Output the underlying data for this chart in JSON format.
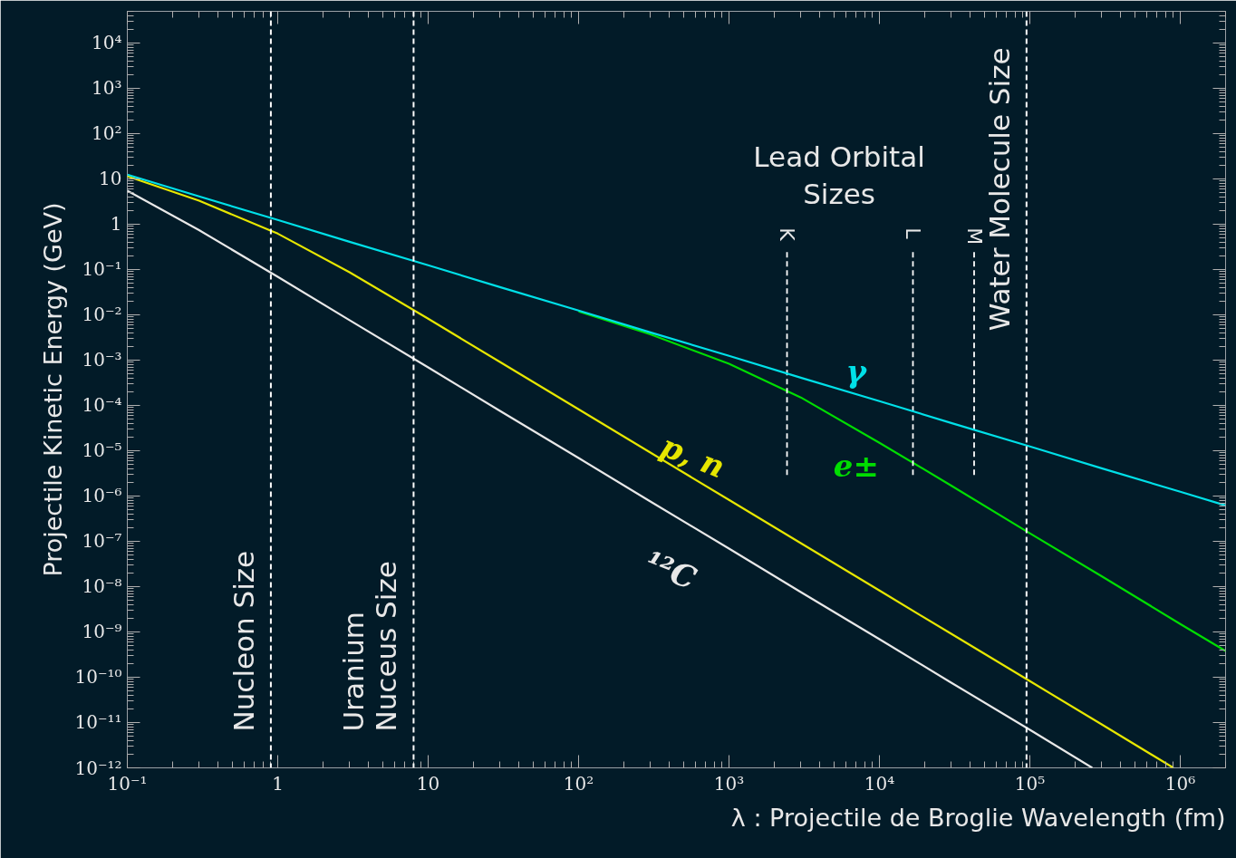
{
  "chart_data": {
    "type": "line",
    "xlabel": "λ : Projectile de Broglie Wavelength (fm)",
    "ylabel": "Projectile Kinetic Energy (GeV)",
    "log": "xy",
    "grid": false,
    "marker": "none",
    "line_style": "solid",
    "xlim": [
      0.1,
      2000000
    ],
    "ylim": [
      1e-12,
      50000
    ],
    "xticks": [
      {
        "value": 0.1,
        "label": "10⁻¹"
      },
      1,
      10,
      {
        "value": 100,
        "label": "10²"
      },
      {
        "value": 1000,
        "label": "10³"
      },
      {
        "value": 10000,
        "label": "10⁴"
      },
      {
        "value": 100000,
        "label": "10⁵"
      },
      {
        "value": 1000000,
        "label": "10⁶"
      }
    ],
    "yticks": [
      {
        "value": 1e-12,
        "label": "10⁻¹²"
      },
      {
        "value": 1e-11,
        "label": "10⁻¹¹"
      },
      {
        "value": 1e-10,
        "label": "10⁻¹⁰"
      },
      {
        "value": 1e-09,
        "label": "10⁻⁹"
      },
      {
        "value": 1e-08,
        "label": "10⁻⁸"
      },
      {
        "value": 1e-07,
        "label": "10⁻⁷"
      },
      {
        "value": 1e-06,
        "label": "10⁻⁶"
      },
      {
        "value": 1e-05,
        "label": "10⁻⁵"
      },
      {
        "value": 0.0001,
        "label": "10⁻⁴"
      },
      {
        "value": 0.001,
        "label": "10⁻³"
      },
      {
        "value": 0.01,
        "label": "10⁻²"
      },
      {
        "value": 0.1,
        "label": "10⁻¹"
      },
      1,
      10,
      {
        "value": 100,
        "label": "10²"
      },
      {
        "value": 1000,
        "label": "10³"
      },
      {
        "value": 10000,
        "label": "10⁴"
      }
    ],
    "x": [
      0.1,
      0.3,
      1,
      3,
      10,
      30,
      100,
      300,
      1000,
      3000,
      10000,
      30000,
      100000,
      300000,
      1000000,
      2000000
    ],
    "series": [
      {
        "name": "γ",
        "color": "#00e0e8",
        "values": [
          12.4,
          4.1,
          1.24,
          0.41,
          0.124,
          0.041,
          0.0124,
          0.0041,
          0.00124,
          0.00041,
          0.000124,
          4.1e-05,
          1.24e-05,
          4.1e-06,
          1.24e-06,
          6.2e-07
        ]
      },
      {
        "name": "e±",
        "color": "#00dd00",
        "values": [
          null,
          null,
          null,
          null,
          null,
          null,
          0.0119,
          0.0037,
          0.00083,
          0.00015,
          1.5e-05,
          1.7e-06,
          1.5e-07,
          1.7e-08,
          1.5e-09,
          3.8e-10
        ]
      },
      {
        "name": "p, n",
        "color": "#e6e600",
        "x": [
          0.1,
          0.3,
          1,
          3,
          10,
          30,
          100,
          300,
          1000,
          3000,
          10000,
          30000,
          100000,
          300000,
          900000
        ],
        "values": [
          11.5,
          3.3,
          0.62,
          0.087,
          0.0082,
          0.00091,
          8.2e-05,
          9.1e-06,
          8.2e-07,
          9.1e-08,
          8.2e-09,
          9.1e-10,
          8.2e-11,
          9.1e-12,
          1e-12
        ]
      },
      {
        "name": "¹²C",
        "color": "#e8e8e8",
        "x": [
          0.1,
          0.3,
          1,
          3,
          10,
          30,
          100,
          300,
          1000,
          3000,
          10000,
          30000,
          100000,
          260000
        ],
        "values": [
          5.5,
          0.74,
          0.069,
          0.0076,
          0.00069,
          7.6e-05,
          6.9e-06,
          7.6e-07,
          6.9e-08,
          7.6e-09,
          6.9e-10,
          7.6e-11,
          6.9e-12,
          1e-12
        ]
      },
      {
        "name": "K",
        "color": "#ffffff",
        "line_style": "dashed",
        "x": [
          2430,
          2430
        ],
        "values": [
          2.9e-06,
          0.28
        ]
      },
      {
        "name": "L",
        "color": "#ffffff",
        "line_style": "dashed",
        "x": [
          16700,
          16700
        ],
        "values": [
          2.9e-06,
          0.28
        ]
      },
      {
        "name": "M",
        "color": "#ffffff",
        "line_style": "dashed",
        "x": [
          42600,
          42600
        ],
        "values": [
          2.9e-06,
          0.28
        ]
      }
    ],
    "ref_lines": [
      {
        "axis": "x",
        "value": 0.9,
        "label": "Nucleon Size",
        "color": "#ffffff",
        "line_style": "dashed"
      },
      {
        "axis": "x",
        "value": 8,
        "label": "Uranium\nNuceus Size",
        "color": "#ffffff",
        "line_style": "dashed"
      },
      {
        "axis": "x",
        "value": 95000,
        "label": "Water Molecule Size",
        "color": "#ffffff",
        "line_style": "dashed"
      }
    ],
    "annotations": [
      "Lead Orbital\nSizes"
    ]
  }
}
